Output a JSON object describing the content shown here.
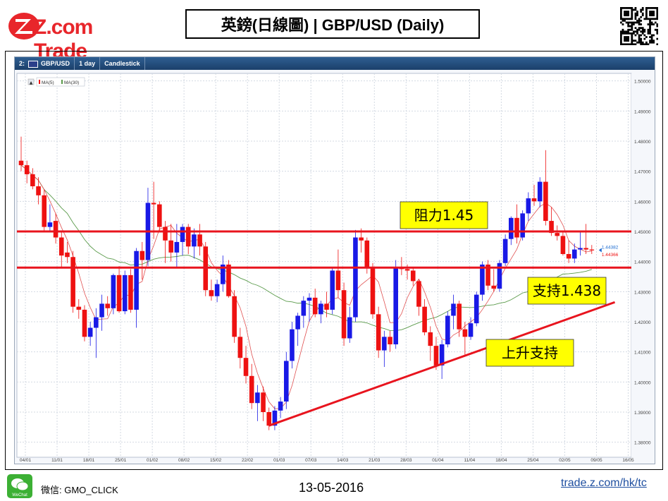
{
  "header": {
    "logo_text": "Z.com Trade",
    "title": "英鎊(日線圖) | GBP/USD  (Daily)"
  },
  "toolbar": {
    "symbol": "GBP/USD",
    "period": "1 day",
    "style": "Candlestick",
    "prefix": "2:"
  },
  "footer": {
    "wechat_label": "微信: GMO_CLICK",
    "date": "13-05-2016",
    "url": "trade.z.com/hk/tc",
    "wechat_icon_text": "WeChat"
  },
  "colors": {
    "up": "#1919e6",
    "down": "#ee1111",
    "ma5": "#e05050",
    "ma30": "#5a9a4a",
    "level": "#e8141e",
    "annotation_bg": "#ffff00"
  },
  "chart_data": {
    "type": "candlestick",
    "symbol": "GBP/USD",
    "period": "1 day",
    "legend": [
      "MA(5)",
      "MA(30)"
    ],
    "ylim": [
      1.375,
      1.5025
    ],
    "y_ticks": [
      "1.38000",
      "1.39000",
      "1.40000",
      "1.41000",
      "1.42000",
      "1.43000",
      "1.44000",
      "1.45000",
      "1.46000",
      "1.47000",
      "1.48000",
      "1.49000",
      "1.50000"
    ],
    "x_ticks": [
      "04/01",
      "11/01",
      "18/01",
      "25/01",
      "01/02",
      "08/02",
      "15/02",
      "22/02",
      "01/03",
      "07/03",
      "14/03",
      "21/03",
      "28/03",
      "01/04",
      "11/04",
      "18/04",
      "25/04",
      "02/05",
      "09/05",
      "16/05"
    ],
    "price_labels": [
      "1.44382",
      "1.44366"
    ],
    "ohlc": [
      {
        "o": 1.4735,
        "h": 1.4815,
        "l": 1.47,
        "c": 1.472
      },
      {
        "o": 1.472,
        "h": 1.4735,
        "l": 1.466,
        "c": 1.469
      },
      {
        "o": 1.469,
        "h": 1.471,
        "l": 1.464,
        "c": 1.465
      },
      {
        "o": 1.465,
        "h": 1.468,
        "l": 1.459,
        "c": 1.462
      },
      {
        "o": 1.462,
        "h": 1.464,
        "l": 1.45,
        "c": 1.4515
      },
      {
        "o": 1.4515,
        "h": 1.459,
        "l": 1.45,
        "c": 1.453
      },
      {
        "o": 1.4535,
        "h": 1.456,
        "l": 1.446,
        "c": 1.448
      },
      {
        "o": 1.448,
        "h": 1.45,
        "l": 1.438,
        "c": 1.442
      },
      {
        "o": 1.443,
        "h": 1.4465,
        "l": 1.4395,
        "c": 1.4415
      },
      {
        "o": 1.4415,
        "h": 1.4435,
        "l": 1.423,
        "c": 1.425
      },
      {
        "o": 1.425,
        "h": 1.4275,
        "l": 1.421,
        "c": 1.424
      },
      {
        "o": 1.424,
        "h": 1.4255,
        "l": 1.4135,
        "c": 1.415
      },
      {
        "o": 1.415,
        "h": 1.42,
        "l": 1.412,
        "c": 1.418
      },
      {
        "o": 1.418,
        "h": 1.4245,
        "l": 1.408,
        "c": 1.4215
      },
      {
        "o": 1.4215,
        "h": 1.429,
        "l": 1.417,
        "c": 1.426
      },
      {
        "o": 1.426,
        "h": 1.4285,
        "l": 1.422,
        "c": 1.4245
      },
      {
        "o": 1.4245,
        "h": 1.436,
        "l": 1.4225,
        "c": 1.4355
      },
      {
        "o": 1.4355,
        "h": 1.4385,
        "l": 1.423,
        "c": 1.4235
      },
      {
        "o": 1.4235,
        "h": 1.437,
        "l": 1.4225,
        "c": 1.4355
      },
      {
        "o": 1.4355,
        "h": 1.4375,
        "l": 1.423,
        "c": 1.424
      },
      {
        "o": 1.424,
        "h": 1.4445,
        "l": 1.418,
        "c": 1.4435
      },
      {
        "o": 1.4435,
        "h": 1.4465,
        "l": 1.434,
        "c": 1.4405
      },
      {
        "o": 1.4405,
        "h": 1.4645,
        "l": 1.4385,
        "c": 1.4595
      },
      {
        "o": 1.4595,
        "h": 1.4665,
        "l": 1.4475,
        "c": 1.459
      },
      {
        "o": 1.459,
        "h": 1.46,
        "l": 1.45,
        "c": 1.4515
      },
      {
        "o": 1.4515,
        "h": 1.4535,
        "l": 1.4395,
        "c": 1.447
      },
      {
        "o": 1.447,
        "h": 1.4525,
        "l": 1.44,
        "c": 1.443
      },
      {
        "o": 1.443,
        "h": 1.4525,
        "l": 1.438,
        "c": 1.4465
      },
      {
        "o": 1.4465,
        "h": 1.4525,
        "l": 1.442,
        "c": 1.4515
      },
      {
        "o": 1.4515,
        "h": 1.4525,
        "l": 1.4425,
        "c": 1.445
      },
      {
        "o": 1.445,
        "h": 1.451,
        "l": 1.441,
        "c": 1.449
      },
      {
        "o": 1.449,
        "h": 1.4525,
        "l": 1.442,
        "c": 1.445
      },
      {
        "o": 1.445,
        "h": 1.4465,
        "l": 1.4285,
        "c": 1.4305
      },
      {
        "o": 1.4305,
        "h": 1.434,
        "l": 1.427,
        "c": 1.4285
      },
      {
        "o": 1.4285,
        "h": 1.434,
        "l": 1.4265,
        "c": 1.4325
      },
      {
        "o": 1.4325,
        "h": 1.442,
        "l": 1.43,
        "c": 1.439
      },
      {
        "o": 1.439,
        "h": 1.4405,
        "l": 1.428,
        "c": 1.4285
      },
      {
        "o": 1.4285,
        "h": 1.4305,
        "l": 1.413,
        "c": 1.415
      },
      {
        "o": 1.415,
        "h": 1.418,
        "l": 1.4045,
        "c": 1.408
      },
      {
        "o": 1.408,
        "h": 1.412,
        "l": 1.3995,
        "c": 1.402
      },
      {
        "o": 1.402,
        "h": 1.406,
        "l": 1.391,
        "c": 1.393
      },
      {
        "o": 1.393,
        "h": 1.399,
        "l": 1.387,
        "c": 1.3965
      },
      {
        "o": 1.3965,
        "h": 1.3985,
        "l": 1.387,
        "c": 1.39
      },
      {
        "o": 1.39,
        "h": 1.3915,
        "l": 1.384,
        "c": 1.3855
      },
      {
        "o": 1.3855,
        "h": 1.392,
        "l": 1.384,
        "c": 1.3905
      },
      {
        "o": 1.3905,
        "h": 1.395,
        "l": 1.388,
        "c": 1.3935
      },
      {
        "o": 1.3935,
        "h": 1.41,
        "l": 1.391,
        "c": 1.407
      },
      {
        "o": 1.407,
        "h": 1.42,
        "l": 1.4045,
        "c": 1.4175
      },
      {
        "o": 1.4175,
        "h": 1.423,
        "l": 1.412,
        "c": 1.422
      },
      {
        "o": 1.422,
        "h": 1.4285,
        "l": 1.418,
        "c": 1.427
      },
      {
        "o": 1.427,
        "h": 1.4295,
        "l": 1.42,
        "c": 1.428
      },
      {
        "o": 1.428,
        "h": 1.431,
        "l": 1.4215,
        "c": 1.4225
      },
      {
        "o": 1.4225,
        "h": 1.427,
        "l": 1.4195,
        "c": 1.426
      },
      {
        "o": 1.426,
        "h": 1.43,
        "l": 1.4215,
        "c": 1.424
      },
      {
        "o": 1.424,
        "h": 1.438,
        "l": 1.4225,
        "c": 1.437
      },
      {
        "o": 1.437,
        "h": 1.444,
        "l": 1.428,
        "c": 1.4305
      },
      {
        "o": 1.4305,
        "h": 1.433,
        "l": 1.412,
        "c": 1.4145
      },
      {
        "o": 1.4145,
        "h": 1.425,
        "l": 1.413,
        "c": 1.4215
      },
      {
        "o": 1.4215,
        "h": 1.4505,
        "l": 1.42,
        "c": 1.448
      },
      {
        "o": 1.448,
        "h": 1.451,
        "l": 1.443,
        "c": 1.447
      },
      {
        "o": 1.447,
        "h": 1.448,
        "l": 1.436,
        "c": 1.438
      },
      {
        "o": 1.438,
        "h": 1.4395,
        "l": 1.421,
        "c": 1.4225
      },
      {
        "o": 1.4225,
        "h": 1.425,
        "l": 1.408,
        "c": 1.4105
      },
      {
        "o": 1.4105,
        "h": 1.417,
        "l": 1.405,
        "c": 1.415
      },
      {
        "o": 1.415,
        "h": 1.417,
        "l": 1.41,
        "c": 1.4125
      },
      {
        "o": 1.4125,
        "h": 1.4405,
        "l": 1.411,
        "c": 1.438
      },
      {
        "o": 1.438,
        "h": 1.4415,
        "l": 1.4355,
        "c": 1.4375
      },
      {
        "o": 1.4375,
        "h": 1.439,
        "l": 1.434,
        "c": 1.437
      },
      {
        "o": 1.437,
        "h": 1.438,
        "l": 1.432,
        "c": 1.4335
      },
      {
        "o": 1.4335,
        "h": 1.434,
        "l": 1.422,
        "c": 1.425
      },
      {
        "o": 1.425,
        "h": 1.4275,
        "l": 1.4155,
        "c": 1.4165
      },
      {
        "o": 1.4165,
        "h": 1.4185,
        "l": 1.407,
        "c": 1.412
      },
      {
        "o": 1.412,
        "h": 1.415,
        "l": 1.404,
        "c": 1.4055
      },
      {
        "o": 1.4055,
        "h": 1.414,
        "l": 1.401,
        "c": 1.4125
      },
      {
        "o": 1.4125,
        "h": 1.4235,
        "l": 1.4115,
        "c": 1.422
      },
      {
        "o": 1.422,
        "h": 1.429,
        "l": 1.4175,
        "c": 1.426
      },
      {
        "o": 1.426,
        "h": 1.427,
        "l": 1.415,
        "c": 1.4175
      },
      {
        "o": 1.4175,
        "h": 1.42,
        "l": 1.4085,
        "c": 1.415
      },
      {
        "o": 1.415,
        "h": 1.4215,
        "l": 1.414,
        "c": 1.4195
      },
      {
        "o": 1.4195,
        "h": 1.43,
        "l": 1.4185,
        "c": 1.429
      },
      {
        "o": 1.429,
        "h": 1.44,
        "l": 1.427,
        "c": 1.439
      },
      {
        "o": 1.439,
        "h": 1.4405,
        "l": 1.4305,
        "c": 1.432
      },
      {
        "o": 1.432,
        "h": 1.4375,
        "l": 1.43,
        "c": 1.431
      },
      {
        "o": 1.431,
        "h": 1.4405,
        "l": 1.43,
        "c": 1.4395
      },
      {
        "o": 1.4395,
        "h": 1.449,
        "l": 1.4385,
        "c": 1.4475
      },
      {
        "o": 1.4475,
        "h": 1.455,
        "l": 1.4455,
        "c": 1.4545
      },
      {
        "o": 1.4545,
        "h": 1.459,
        "l": 1.446,
        "c": 1.448
      },
      {
        "o": 1.448,
        "h": 1.457,
        "l": 1.447,
        "c": 1.456
      },
      {
        "o": 1.456,
        "h": 1.463,
        "l": 1.4535,
        "c": 1.461
      },
      {
        "o": 1.461,
        "h": 1.4655,
        "l": 1.4585,
        "c": 1.46
      },
      {
        "o": 1.46,
        "h": 1.468,
        "l": 1.458,
        "c": 1.4665
      },
      {
        "o": 1.4665,
        "h": 1.477,
        "l": 1.452,
        "c": 1.4535
      },
      {
        "o": 1.4535,
        "h": 1.458,
        "l": 1.4485,
        "c": 1.4495
      },
      {
        "o": 1.4495,
        "h": 1.452,
        "l": 1.447,
        "c": 1.4485
      },
      {
        "o": 1.4485,
        "h": 1.45,
        "l": 1.442,
        "c": 1.4425
      },
      {
        "o": 1.4425,
        "h": 1.447,
        "l": 1.4395,
        "c": 1.441
      },
      {
        "o": 1.441,
        "h": 1.446,
        "l": 1.4395,
        "c": 1.444
      },
      {
        "o": 1.444,
        "h": 1.45,
        "l": 1.442,
        "c": 1.4445
      },
      {
        "o": 1.4445,
        "h": 1.4525,
        "l": 1.4425,
        "c": 1.444
      },
      {
        "o": 1.444,
        "h": 1.4455,
        "l": 1.4425,
        "c": 1.4437
      }
    ],
    "levels": [
      {
        "label": "阻力1.45",
        "value": 1.45
      },
      {
        "label": "支持1.438",
        "value": 1.438
      }
    ],
    "trendline": {
      "label": "上升支持",
      "from": {
        "x_index": 43,
        "y": 1.3855
      },
      "to": {
        "x_index": 103,
        "y": 1.4265
      }
    }
  }
}
